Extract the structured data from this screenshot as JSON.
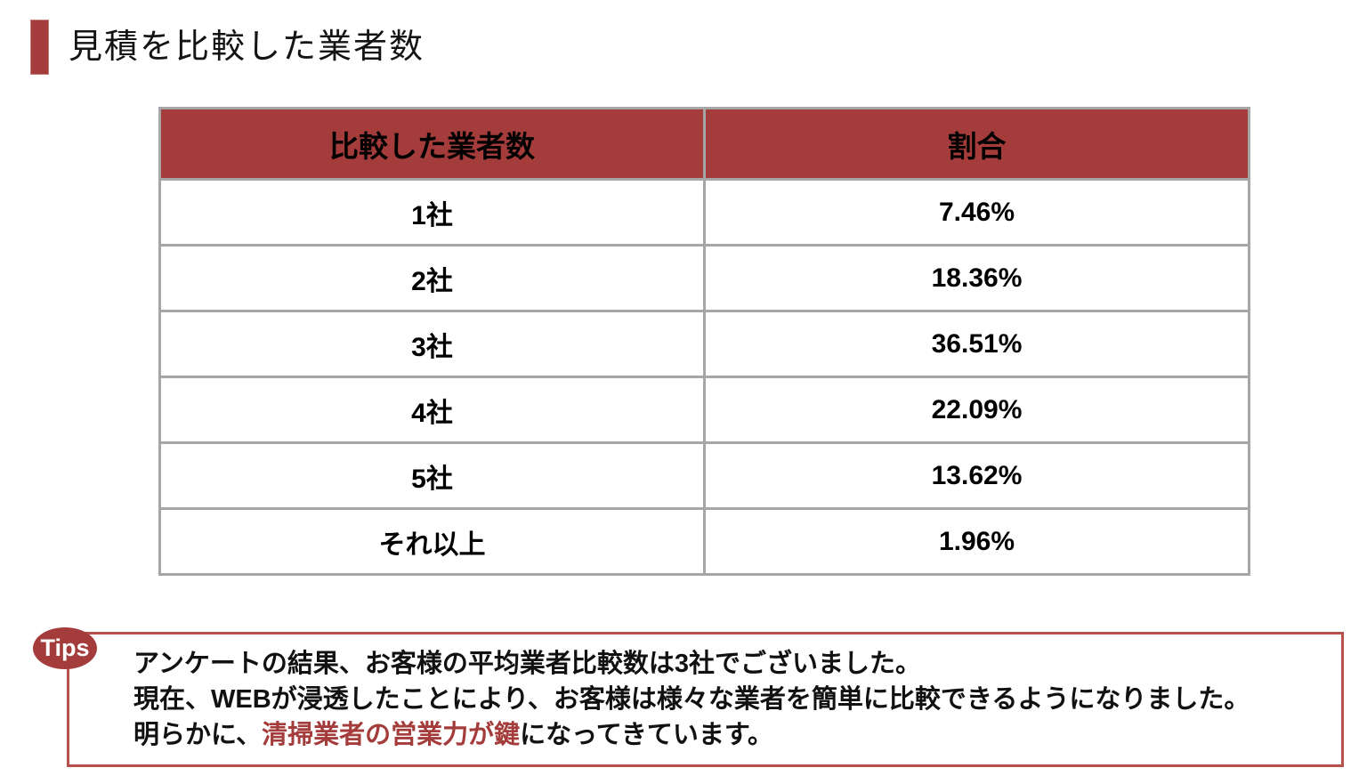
{
  "page": {
    "title": "見積を比較した業者数"
  },
  "table": {
    "headers": [
      "比較した業者数",
      "割合"
    ],
    "rows": [
      {
        "label": "1社",
        "value": "7.46%"
      },
      {
        "label": "2社",
        "value": "18.36%"
      },
      {
        "label": "3社",
        "value": "36.51%"
      },
      {
        "label": "4社",
        "value": "22.09%"
      },
      {
        "label": "5社",
        "value": "13.62%"
      },
      {
        "label": "それ以上",
        "value": "1.96%"
      }
    ]
  },
  "tips": {
    "badge_label": "Tips",
    "line1": "アンケートの結果、お客様の平均業者比較数は3社でございました。",
    "line2": "現在、WEBが浸透したことにより、お客様は様々な業者を簡単に比較できるようになりました。",
    "line3_before": "明らかに、",
    "line3_highlight": "清掃業者の営業力が鍵",
    "line3_after": "になってきています。"
  },
  "colors": {
    "accent_red": "#a33c3a",
    "tips_border_red": "#b5504c",
    "table_border_gray": "#a6a6a6",
    "highlight_text_red": "#a33c3a"
  },
  "chart_data": {
    "type": "table",
    "title": "見積を比較した業者数",
    "categories": [
      "1社",
      "2社",
      "3社",
      "4社",
      "5社",
      "それ以上"
    ],
    "values": [
      7.46,
      18.36,
      36.51,
      22.09,
      13.62,
      1.96
    ],
    "columns": [
      "比較した業者数",
      "割合"
    ],
    "unit": "%"
  }
}
